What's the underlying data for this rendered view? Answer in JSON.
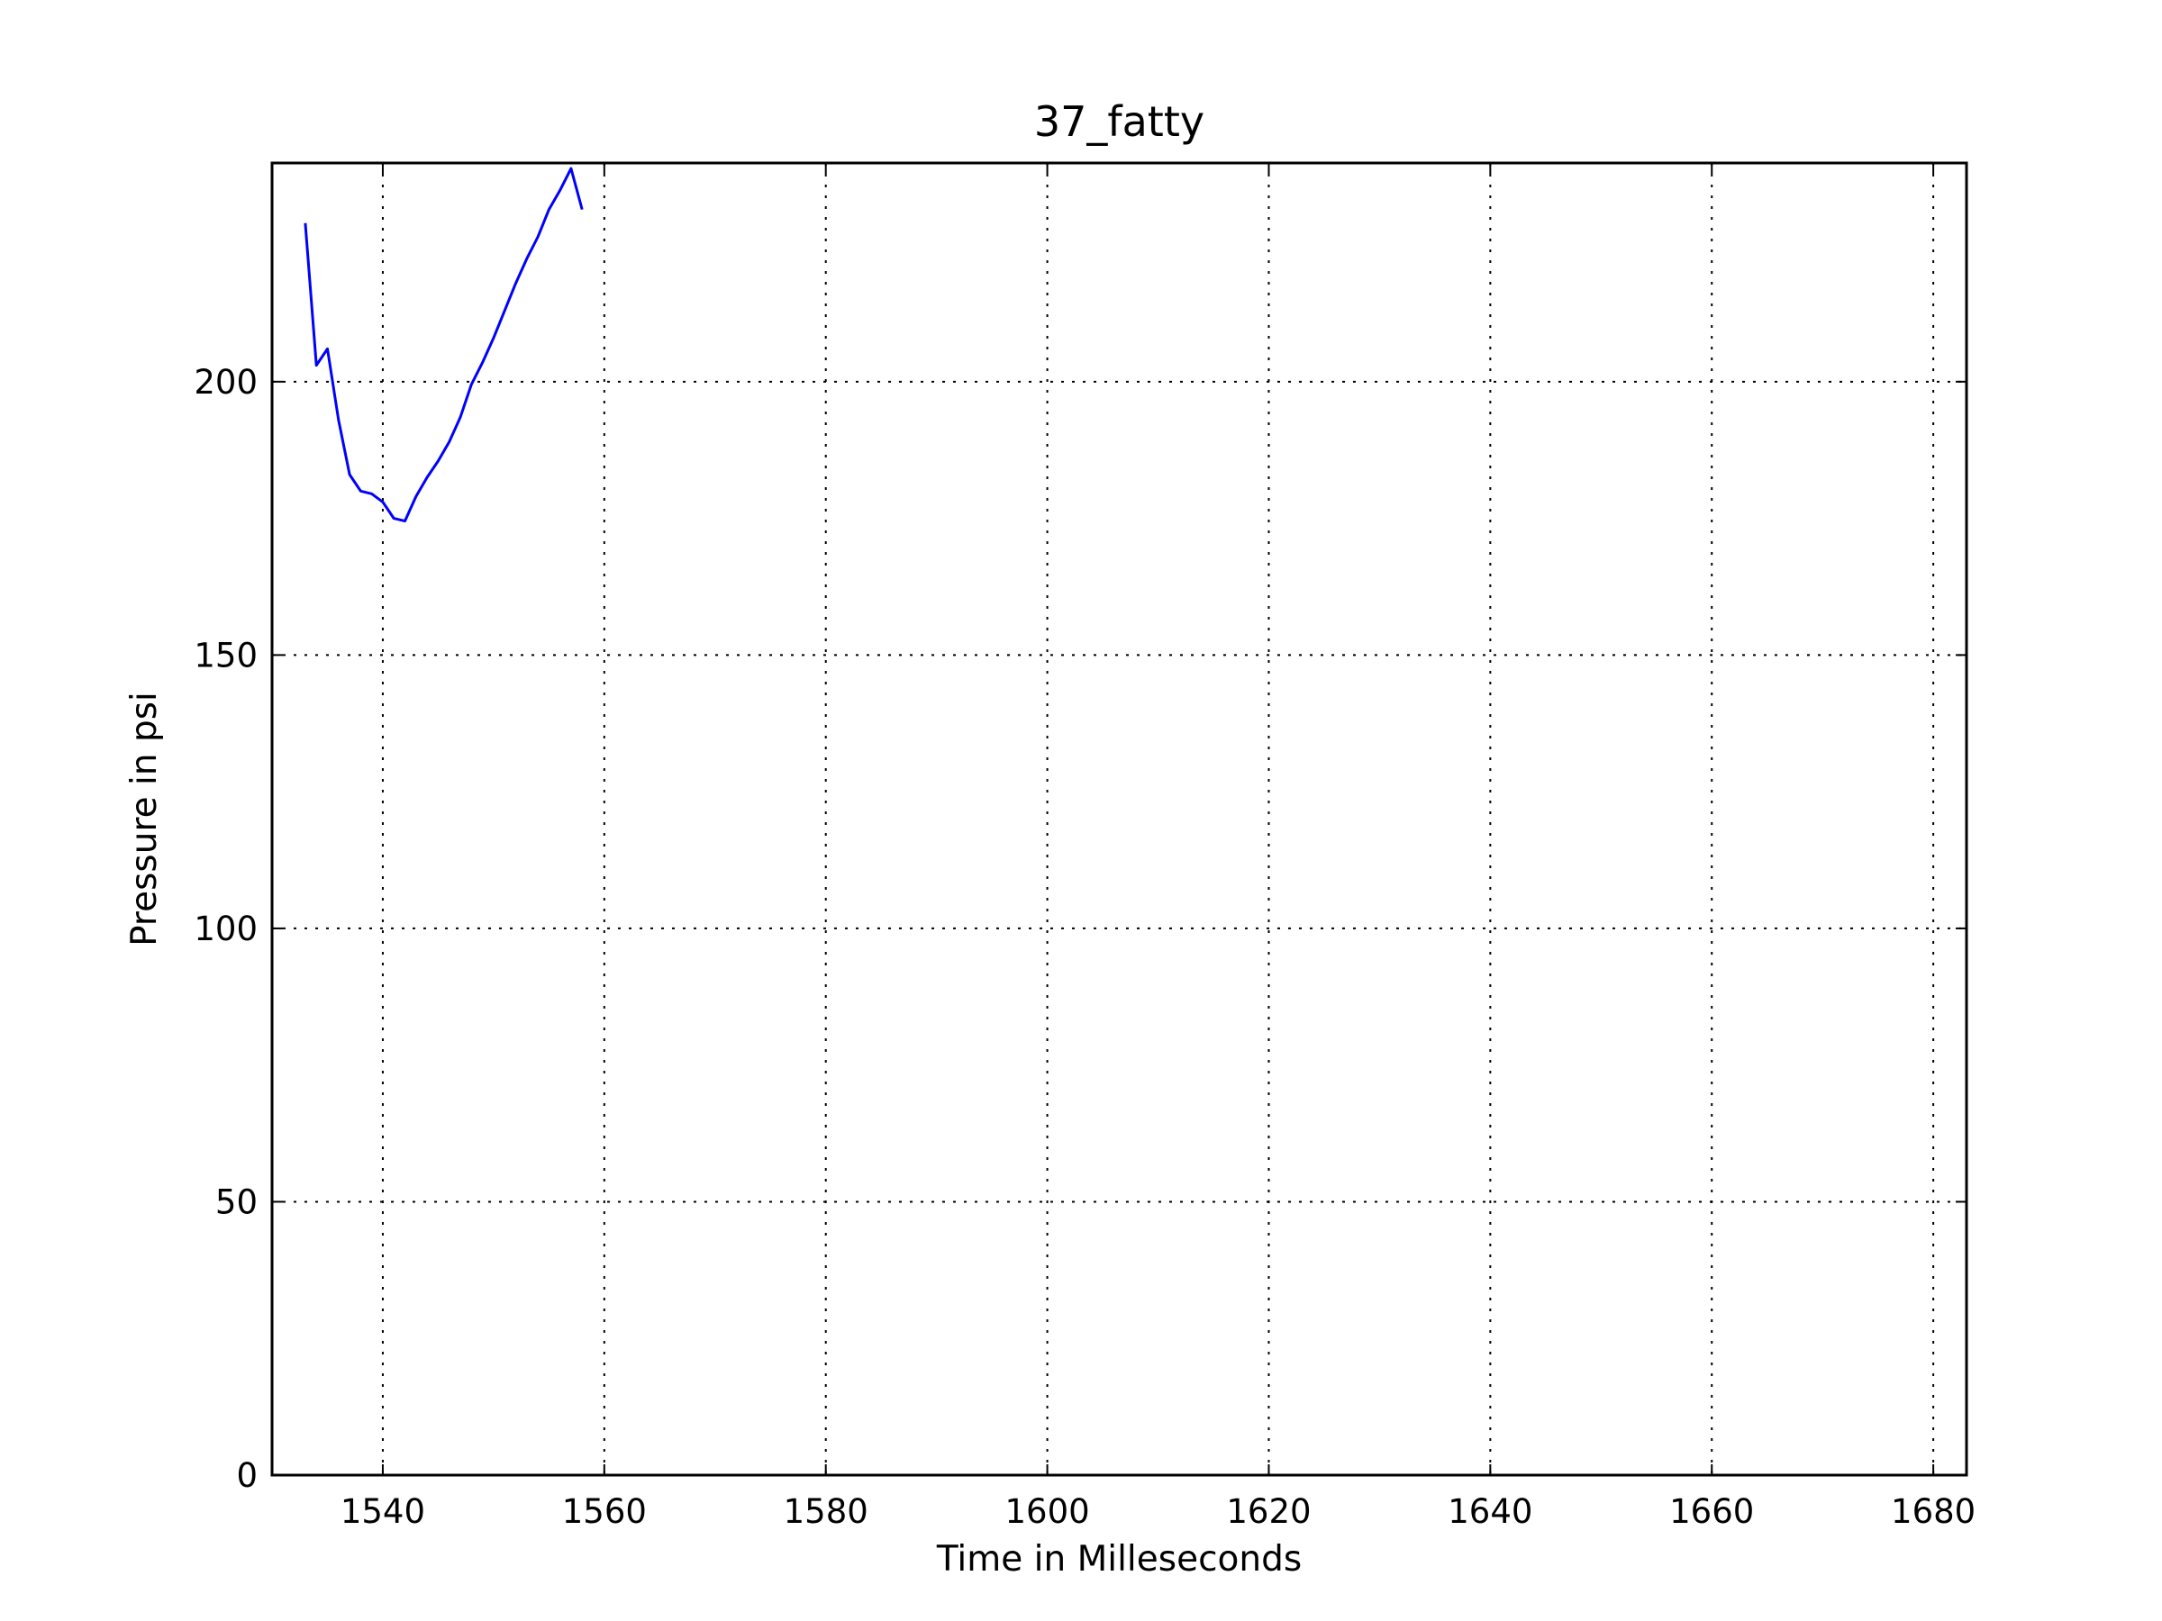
{
  "chart_data": {
    "type": "line",
    "title": "37_fatty",
    "xlabel": "Time in Milleseconds",
    "ylabel": "Pressure in psi",
    "xlim": [
      1530,
      1683
    ],
    "ylim": [
      0,
      240
    ],
    "xticks": [
      1540,
      1560,
      1580,
      1600,
      1620,
      1640,
      1660,
      1680
    ],
    "yticks": [
      0,
      50,
      100,
      150,
      200
    ],
    "grid": true,
    "grid_style": "dotted",
    "series": [
      {
        "color": "#0000ff",
        "x": [
          1533,
          1534,
          1535,
          1536,
          1537,
          1538,
          1539,
          1540,
          1541,
          1542,
          1543,
          1544,
          1545,
          1546,
          1547,
          1548,
          1549,
          1550,
          1551,
          1552,
          1553,
          1554,
          1555,
          1556,
          1557,
          1558
        ],
        "y": [
          229,
          203,
          206,
          193,
          183,
          180,
          179.5,
          178,
          175,
          174.5,
          179,
          182.5,
          185.5,
          189,
          193.5,
          199.5,
          203.5,
          208,
          213,
          218,
          222.5,
          226.5,
          231.5,
          235,
          239,
          231.5
        ]
      }
    ]
  }
}
